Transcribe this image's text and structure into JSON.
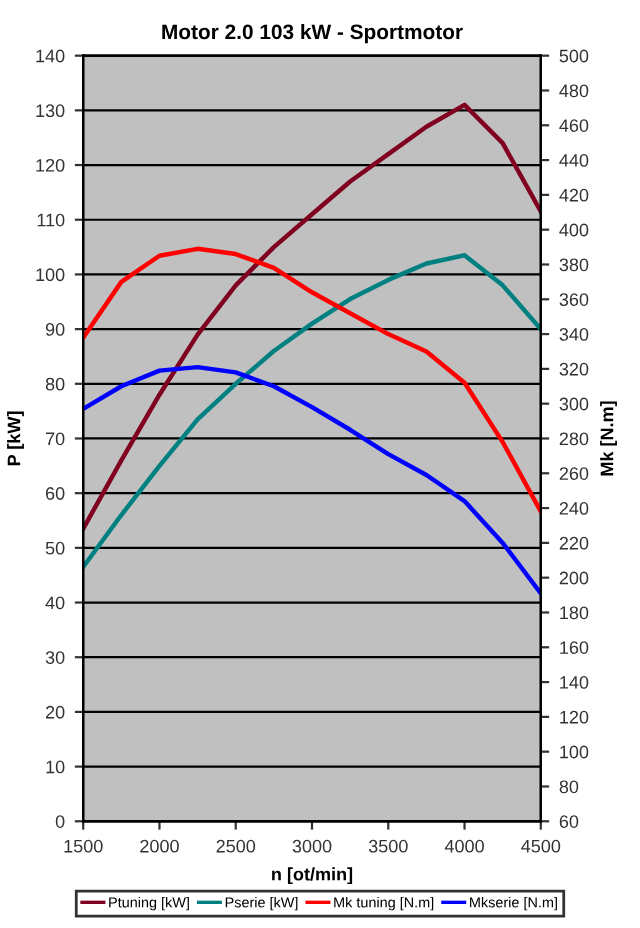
{
  "chart_data": {
    "type": "line",
    "title": "Motor 2.0 103 kW - Sportmotor",
    "xlabel": "n [ot/min]",
    "ylabel": "P [kW]",
    "y2label": "Mk [N.m]",
    "x": [
      1500,
      1750,
      2000,
      2250,
      2500,
      2750,
      3000,
      3250,
      3500,
      3750,
      4000,
      4250,
      4500
    ],
    "series": [
      {
        "name": "Ptuning [kW]",
        "color": "#800020",
        "values": [
          53.5,
          66,
          78,
          89,
          98,
          105,
          111,
          117,
          122,
          127,
          131,
          124,
          111.5
        ]
      },
      {
        "name": "Pserie [kW]",
        "color": "#008080",
        "values": [
          46.5,
          56,
          65,
          73.5,
          80,
          86,
          91,
          95.5,
          99,
          102,
          103.5,
          98,
          90
        ]
      },
      {
        "name": "Mk tuning [N.m]",
        "color": "#ff0000",
        "axis": "y2",
        "values": [
          338,
          370,
          385,
          389,
          386,
          378,
          364,
          352,
          340,
          330,
          312,
          278,
          238
        ]
      },
      {
        "name": "Mkserie [N.m]",
        "color": "#0000ff",
        "axis": "y2",
        "values": [
          297,
          310,
          319,
          321,
          318,
          310,
          298,
          285,
          271,
          259,
          244,
          220,
          191
        ]
      }
    ],
    "xlim": [
      1500,
      4500
    ],
    "xticks": [
      1500,
      2000,
      2500,
      3000,
      3500,
      4000,
      4500
    ],
    "ylim": [
      0,
      140
    ],
    "yticks": [
      0,
      10,
      20,
      30,
      40,
      50,
      60,
      70,
      80,
      90,
      100,
      110,
      120,
      130,
      140
    ],
    "y2lim": [
      60,
      500
    ],
    "y2ticks": [
      60,
      80,
      100,
      120,
      140,
      160,
      180,
      200,
      220,
      240,
      260,
      280,
      300,
      320,
      340,
      360,
      380,
      400,
      420,
      440,
      460,
      480,
      500
    ],
    "grid": "y",
    "legend": "bottom",
    "marker": "none",
    "line_style": "solid"
  }
}
